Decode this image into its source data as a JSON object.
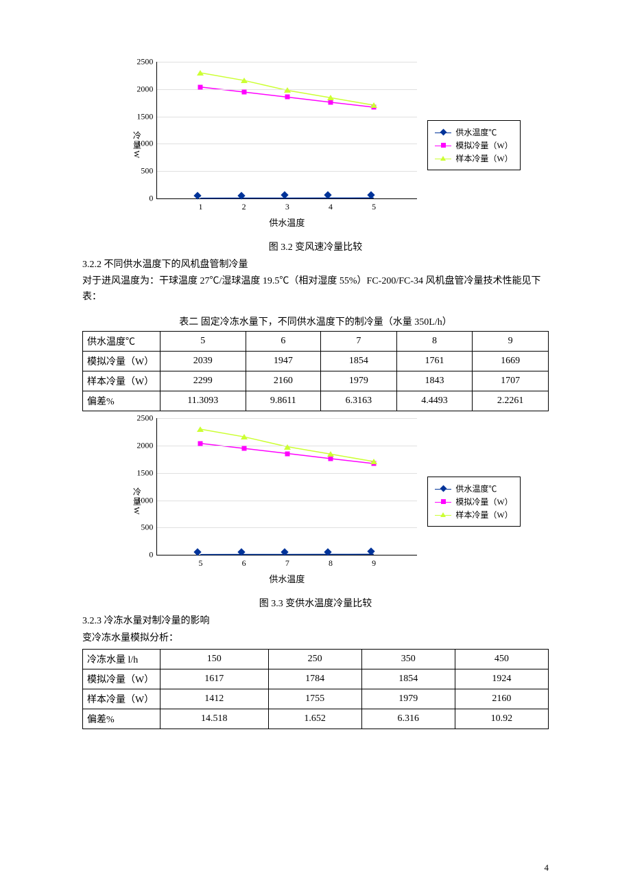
{
  "chart1": {
    "type": "line",
    "ylabel": "冷量W",
    "xlabel": "供水温度",
    "ylim": [
      0,
      2500
    ],
    "ytick_step": 500,
    "yticks": [
      0,
      500,
      1000,
      1500,
      2000,
      2500
    ],
    "categories": [
      "1",
      "2",
      "3",
      "4",
      "5"
    ],
    "grid_color": "#e0e0e0",
    "background_color": "#ffffff",
    "series": [
      {
        "name": "供水温度℃",
        "color": "#003399",
        "marker": "diamond",
        "values": [
          5,
          6,
          7,
          8,
          9
        ]
      },
      {
        "name": "模拟冷量（W）",
        "color": "#ff00ff",
        "marker": "square",
        "values": [
          2039,
          1947,
          1854,
          1761,
          1669
        ]
      },
      {
        "name": "样本冷量（W）",
        "color": "#ccff33",
        "marker": "triangle",
        "values": [
          2299,
          2160,
          1979,
          1843,
          1707
        ]
      }
    ]
  },
  "caption1": "图 3.2 变风速冷量比较",
  "sec_322_title": "3.2.2 不同供水温度下的风机盘管制冷量",
  "sec_322_p1": "对于进风温度为：干球温度 27℃/湿球温度 19.5℃（相对湿度 55%）FC-200/FC-34 风机盘管冷量技术性能见下表：",
  "table2_title": "表二  固定冷冻水量下，不同供水温度下的制冷量（水量 350L/h）",
  "table2": {
    "columns": [
      "供水温度℃",
      "5",
      "6",
      "7",
      "8",
      "9"
    ],
    "rows": [
      [
        "模拟冷量（W）",
        "2039",
        "1947",
        "1854",
        "1761",
        "1669"
      ],
      [
        "样本冷量（W）",
        "2299",
        "2160",
        "1979",
        "1843",
        "1707"
      ],
      [
        "偏差%",
        "11.3093",
        "9.8611",
        "6.3163",
        "4.4493",
        "2.2261"
      ]
    ]
  },
  "chart2": {
    "type": "line",
    "ylabel": "冷量W",
    "xlabel": "供水温度",
    "ylim": [
      0,
      2500
    ],
    "ytick_step": 500,
    "yticks": [
      0,
      500,
      1000,
      1500,
      2000,
      2500
    ],
    "categories": [
      "5",
      "6",
      "7",
      "8",
      "9"
    ],
    "grid_color": "#e0e0e0",
    "background_color": "#ffffff",
    "series": [
      {
        "name": "供水温度℃",
        "color": "#003399",
        "marker": "diamond",
        "values": [
          5,
          6,
          7,
          8,
          9
        ]
      },
      {
        "name": "模拟冷量（W）",
        "color": "#ff00ff",
        "marker": "square",
        "values": [
          2039,
          1947,
          1854,
          1761,
          1669
        ]
      },
      {
        "name": "样本冷量（W）",
        "color": "#ccff33",
        "marker": "triangle",
        "values": [
          2299,
          2160,
          1979,
          1843,
          1707
        ]
      }
    ]
  },
  "caption2": "图 3.3 变供水温度冷量比较",
  "sec_323_title": "3.2.3 冷冻水量对制冷量的影响",
  "sec_323_p1": "变冷冻水量模拟分析：",
  "table3": {
    "columns": [
      "冷冻水量 l/h",
      "150",
      "250",
      "350",
      "450"
    ],
    "rows": [
      [
        "模拟冷量（W）",
        "1617",
        "1784",
        "1854",
        "1924"
      ],
      [
        "样本冷量（W）",
        "1412",
        "1755",
        "1979",
        "2160"
      ],
      [
        "偏差%",
        "14.518",
        "1.652",
        "6.316",
        "10.92"
      ]
    ]
  },
  "page_number": "4"
}
